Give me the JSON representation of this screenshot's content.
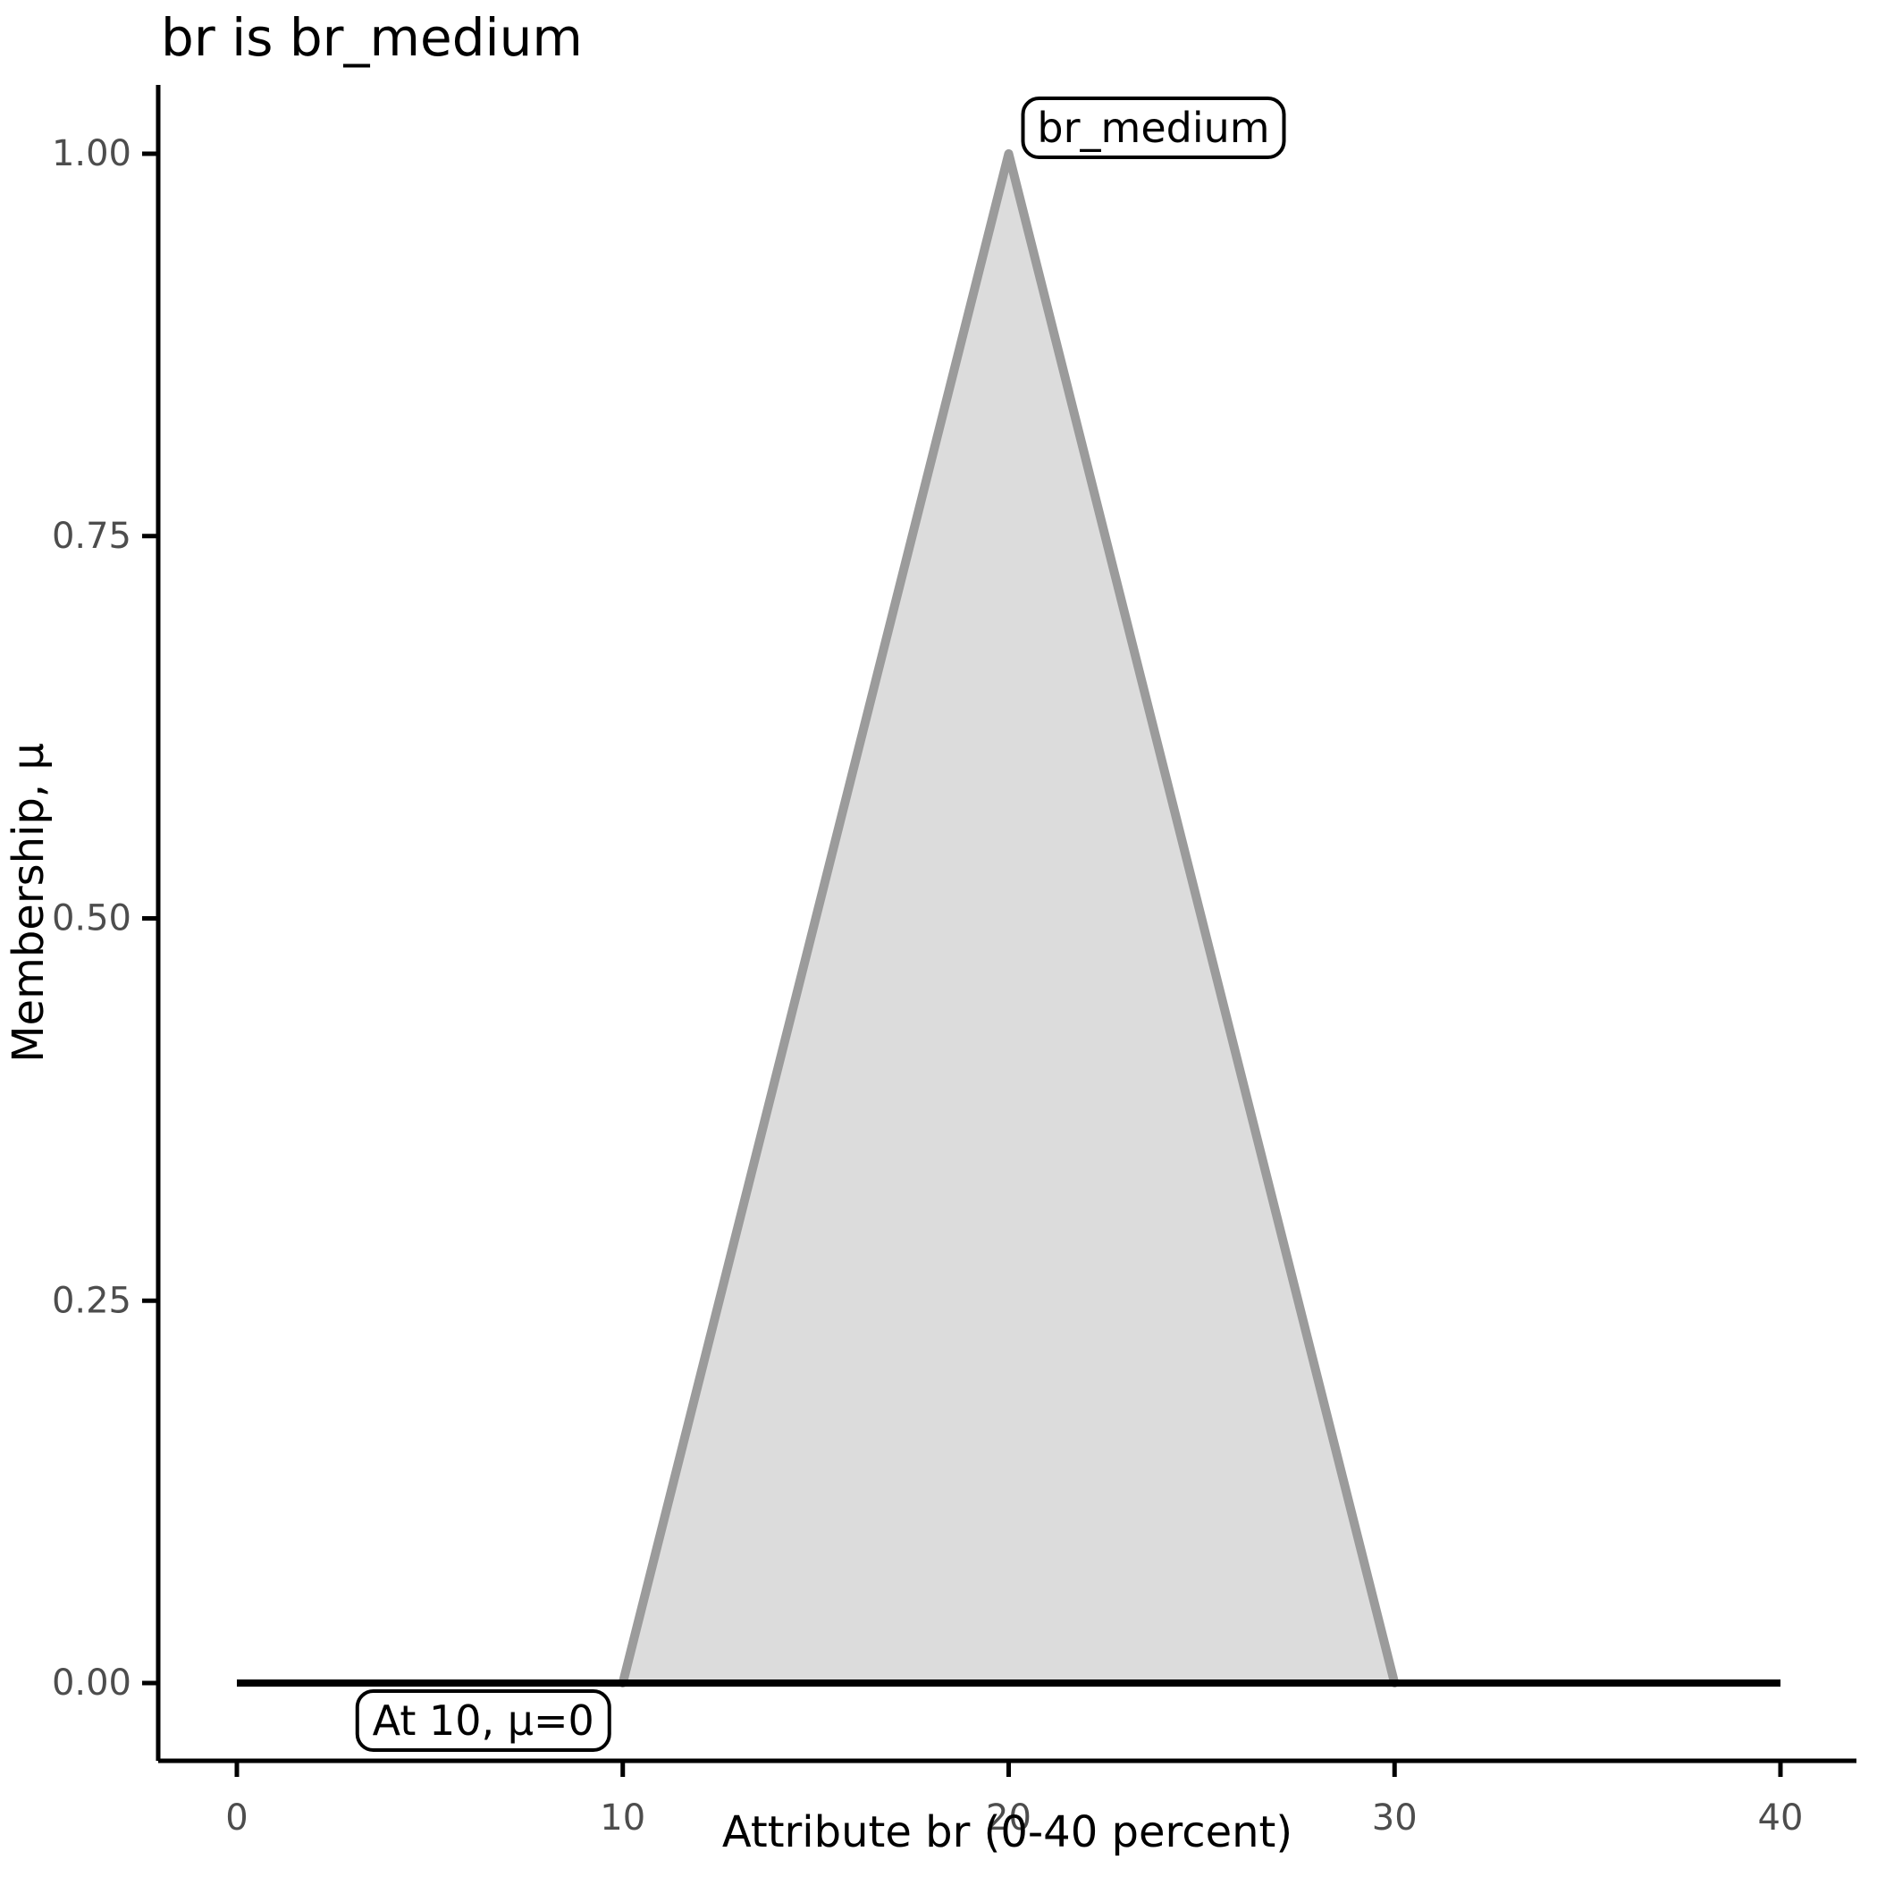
{
  "chart_data": {
    "type": "area",
    "title": "br is br_medium",
    "xlabel": "Attribute br (0-40 percent)",
    "ylabel": "Membership, μ",
    "xlim": [
      0,
      40
    ],
    "ylim": [
      0,
      1
    ],
    "grid": false,
    "legend": "none",
    "x_ticks": [
      {
        "value": 0,
        "label": "0"
      },
      {
        "value": 10,
        "label": "10"
      },
      {
        "value": 20,
        "label": "20"
      },
      {
        "value": 30,
        "label": "30"
      },
      {
        "value": 40,
        "label": "40"
      }
    ],
    "y_ticks": [
      {
        "value": 0.0,
        "label": "0.00"
      },
      {
        "value": 0.25,
        "label": "0.25"
      },
      {
        "value": 0.5,
        "label": "0.50"
      },
      {
        "value": 0.75,
        "label": "0.75"
      },
      {
        "value": 1.0,
        "label": "1.00"
      }
    ],
    "series": [
      {
        "name": "br_medium",
        "x": [
          0,
          10,
          20,
          30,
          40
        ],
        "y": [
          0,
          0,
          1,
          0,
          0
        ]
      }
    ],
    "annotations": [
      {
        "label": "br_medium",
        "anchor_x": 20,
        "anchor_y": 1.0
      },
      {
        "label": "At 10, μ=0",
        "anchor_x": 10,
        "anchor_y": 0.0
      }
    ],
    "colors": {
      "background": "#ffffff",
      "area_fill": "#dcdcdc",
      "area_stroke": "#9b9b9b",
      "baseline": "#000000",
      "axis": "#000000",
      "tick_label": "#4d4d4d",
      "title_text": "#000000",
      "annotation_border": "#000000",
      "annotation_fill": "#ffffff"
    }
  }
}
